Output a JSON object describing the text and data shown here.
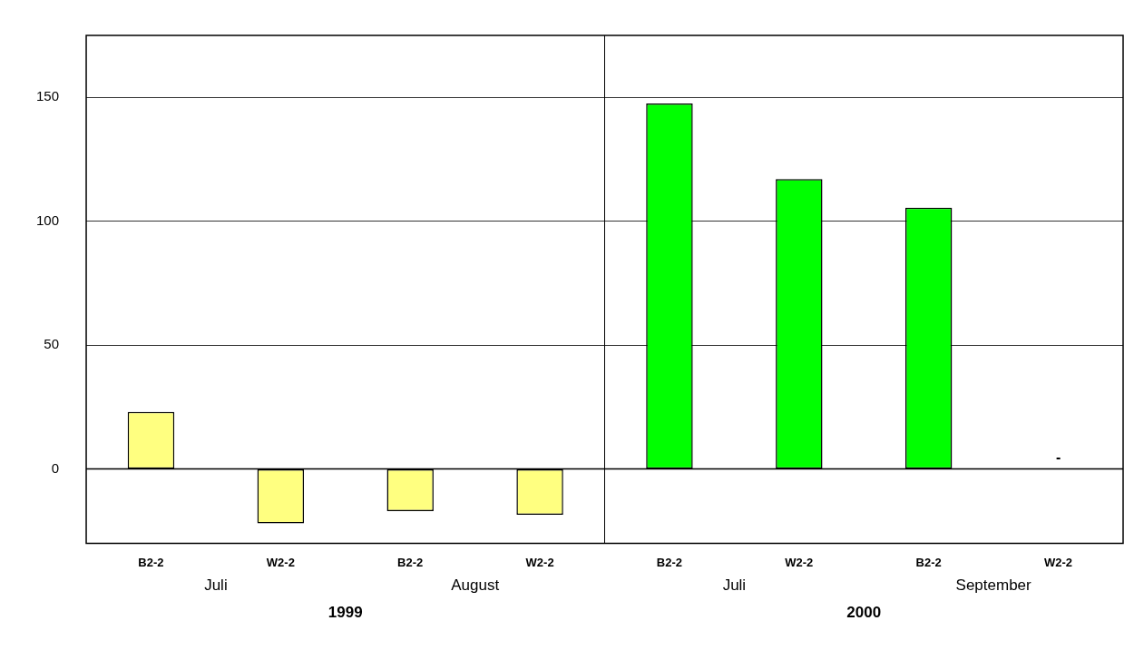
{
  "chart_data": {
    "type": "bar",
    "categories": [
      "B2-2",
      "W2-2",
      "B2-2",
      "W2-2",
      "B2-2",
      "W2-2",
      "B2-2",
      "W2-2"
    ],
    "values": [
      23,
      -22,
      -17,
      -18.5,
      147.5,
      117,
      105.5,
      null
    ],
    "colors": [
      "#ffff80",
      "#ffff80",
      "#ffff80",
      "#ffff80",
      "#00ff00",
      "#00ff00",
      "#00ff00",
      "#00ff00"
    ],
    "value_labels": [
      null,
      null,
      null,
      null,
      null,
      null,
      null,
      "-"
    ],
    "ylim": [
      -30,
      175
    ],
    "yticks": [
      0,
      50,
      100,
      150
    ],
    "grid": "y",
    "legend": false,
    "annotations": [
      "Juli",
      "August",
      "Juli",
      "September",
      "1999",
      "2000"
    ]
  }
}
